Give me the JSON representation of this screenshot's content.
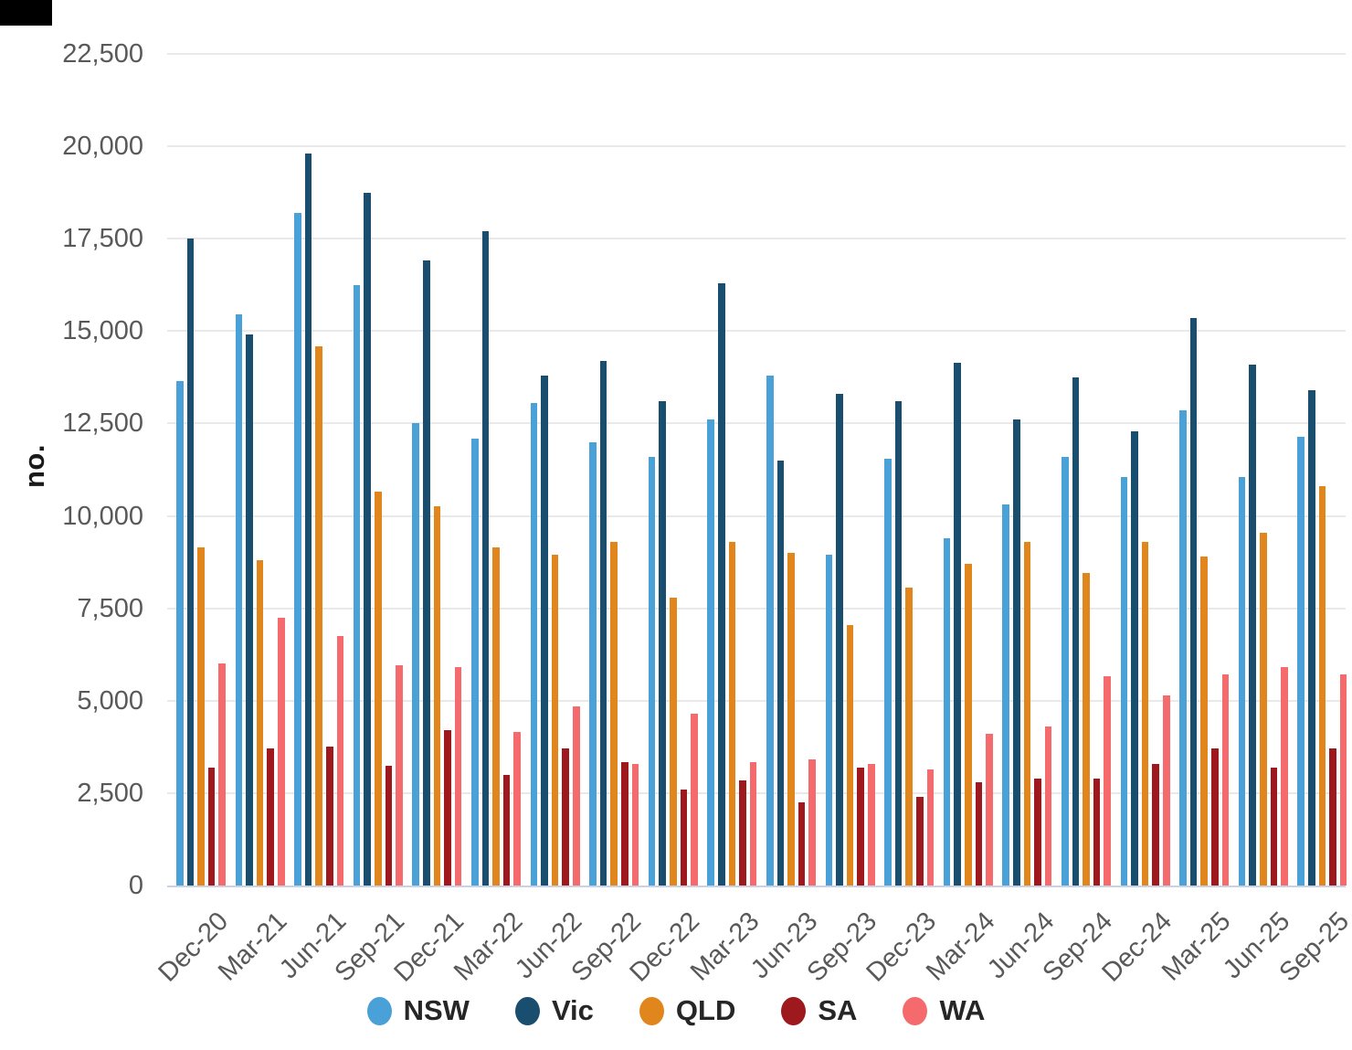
{
  "ui": {
    "ylabel": "no."
  },
  "chart_data": {
    "type": "bar",
    "title": "",
    "xlabel": "",
    "ylabel": "no.",
    "grid": true,
    "legend_position": "bottom",
    "y_axis": {
      "min": 0,
      "max": 22500,
      "step": 2500,
      "tick_labels": [
        "0",
        "2,500",
        "5,000",
        "7,500",
        "10,000",
        "12,500",
        "15,000",
        "17,500",
        "20,000",
        "22,500"
      ]
    },
    "categories": [
      "Dec-20",
      "Mar-21",
      "Jun-21",
      "Sep-21",
      "Dec-21",
      "Mar-22",
      "Jun-22",
      "Sep-22",
      "Dec-22",
      "Mar-23",
      "Jun-23",
      "Sep-23",
      "Dec-23",
      "Mar-24",
      "Jun-24",
      "Sep-24",
      "Dec-24",
      "Mar-25",
      "Jun-25",
      "Sep-25"
    ],
    "series": [
      {
        "name": "NSW",
        "color": "#4aa1d8",
        "values": [
          13650,
          15450,
          18200,
          16250,
          12500,
          12100,
          13050,
          12000,
          11600,
          12600,
          13800,
          8950,
          11550,
          9400,
          10300,
          11600,
          11050,
          12850,
          11050,
          12150
        ]
      },
      {
        "name": "Vic",
        "color": "#1a4e6f",
        "values": [
          17500,
          14900,
          19800,
          18750,
          16900,
          17700,
          13800,
          14200,
          13100,
          16300,
          11500,
          13300,
          13100,
          14150,
          12600,
          13750,
          12300,
          15350,
          14100,
          13400
        ]
      },
      {
        "name": "QLD",
        "color": "#e1861d",
        "values": [
          9150,
          8800,
          14600,
          10650,
          10250,
          9150,
          8950,
          9300,
          7800,
          9300,
          9000,
          7050,
          8050,
          8700,
          9300,
          8450,
          9300,
          8900,
          9550,
          10800
        ]
      },
      {
        "name": "SA",
        "color": "#9d191d",
        "values": [
          3200,
          3700,
          3750,
          3250,
          4200,
          3000,
          3700,
          3350,
          2600,
          2850,
          2250,
          3200,
          2400,
          2800,
          2900,
          2900,
          3300,
          3700,
          3200,
          3700
        ]
      },
      {
        "name": "WA",
        "color": "#f56a6d",
        "values": [
          6000,
          7250,
          6750,
          5950,
          5900,
          4150,
          4850,
          3300,
          4650,
          3350,
          3400,
          3300,
          3150,
          4100,
          4300,
          5650,
          5150,
          5700,
          5900,
          5700
        ]
      }
    ]
  },
  "colors": {
    "background": "#ffffff",
    "gridline": "#e9e9e9",
    "axis_baseline": "#c9d2e4",
    "tick_text": "#595959",
    "ylabel_text": "#1a1a1a",
    "legend_text": "#262626"
  }
}
